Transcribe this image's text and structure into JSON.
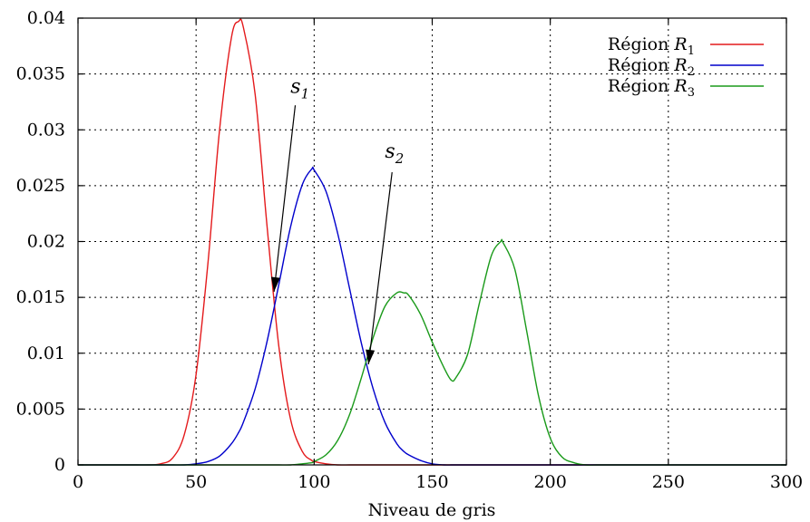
{
  "chart_data": {
    "type": "line",
    "title": "",
    "xlabel": "Niveau de gris",
    "ylabel": "",
    "xlim": [
      0,
      300
    ],
    "ylim": [
      0,
      0.04
    ],
    "grid": true,
    "legend_position": "top-right",
    "x_ticks": [
      0,
      50,
      100,
      150,
      200,
      250,
      300
    ],
    "x_tick_labels": [
      "0",
      "50",
      "100",
      "150",
      "200",
      "250",
      "300"
    ],
    "y_ticks": [
      0,
      0.005,
      0.01,
      0.015,
      0.02,
      0.025,
      0.03,
      0.035,
      0.04
    ],
    "y_tick_labels": [
      "0",
      "0.005",
      "0.01",
      "0.015",
      "0.02",
      "0.025",
      "0.03",
      "0.035",
      "0.04"
    ],
    "x": [
      0,
      5,
      10,
      15,
      20,
      25,
      30,
      35,
      40,
      45,
      50,
      55,
      60,
      65,
      68,
      70,
      75,
      80,
      85,
      90,
      95,
      99,
      100,
      105,
      110,
      115,
      120,
      125,
      130,
      135,
      138,
      140,
      145,
      150,
      155,
      158,
      160,
      165,
      170,
      175,
      179,
      180,
      185,
      190,
      195,
      200,
      205,
      210,
      215,
      220,
      225,
      230,
      235,
      240,
      245,
      250,
      255,
      260,
      265,
      270,
      275,
      280,
      285,
      290,
      295,
      300
    ],
    "series": [
      {
        "name": "Région R1",
        "name_base": "Région ",
        "name_var": "R",
        "name_sub": "1",
        "color": "#e41a1c",
        "values": [
          0,
          0,
          0,
          0,
          0,
          0,
          0,
          0.0001,
          0.0006,
          0.0027,
          0.0081,
          0.018,
          0.0301,
          0.0383,
          0.0397,
          0.0392,
          0.0332,
          0.0215,
          0.0107,
          0.0041,
          0.0012,
          0.0004,
          0.0003,
          0.0001,
          0,
          0,
          0,
          0,
          0,
          0,
          0,
          0,
          0,
          0,
          0,
          0,
          0,
          0,
          0,
          0,
          0,
          0,
          0,
          0,
          0,
          0,
          0,
          0,
          0,
          0,
          0,
          0,
          0,
          0,
          0,
          0,
          0,
          0,
          0,
          0,
          0,
          0,
          0,
          0,
          0,
          0
        ]
      },
      {
        "name": "Région R2",
        "name_base": "Région ",
        "name_var": "R",
        "name_sub": "2",
        "color": "#0000cc",
        "values": [
          0,
          0,
          0,
          0,
          0,
          0,
          0,
          0,
          0,
          0,
          0.0001,
          0.0003,
          0.0008,
          0.0019,
          0.0029,
          0.0038,
          0.0068,
          0.011,
          0.0161,
          0.0213,
          0.0251,
          0.0265,
          0.0264,
          0.0245,
          0.0207,
          0.0158,
          0.0109,
          0.0068,
          0.0038,
          0.0019,
          0.0012,
          0.0009,
          0.0004,
          0.0001,
          0,
          0,
          0,
          0,
          0,
          0,
          0,
          0,
          0,
          0,
          0,
          0,
          0,
          0,
          0,
          0,
          0,
          0,
          0,
          0,
          0,
          0,
          0,
          0,
          0,
          0,
          0,
          0,
          0,
          0,
          0,
          0
        ]
      },
      {
        "name": "Région R3",
        "name_base": "Région ",
        "name_var": "R",
        "name_sub": "3",
        "color": "#1a9a1a",
        "values": [
          0,
          0,
          0,
          0,
          0,
          0,
          0,
          0,
          0,
          0,
          0,
          0,
          0,
          0,
          0,
          0,
          0,
          0,
          0,
          0,
          0.0001,
          0.0002,
          0.0003,
          0.0009,
          0.0022,
          0.0045,
          0.0078,
          0.0114,
          0.0142,
          0.0154,
          0.0154,
          0.0152,
          0.0135,
          0.011,
          0.0087,
          0.0076,
          0.0078,
          0.0099,
          0.0145,
          0.0187,
          0.02,
          0.0199,
          0.0175,
          0.012,
          0.0062,
          0.0024,
          0.0007,
          0.0002,
          0,
          0,
          0,
          0,
          0,
          0,
          0,
          0,
          0,
          0,
          0,
          0,
          0,
          0,
          0,
          0,
          0,
          0
        ]
      }
    ],
    "annotations": [
      {
        "label_var": "s",
        "label_sub": "1",
        "text_at": [
          90,
          0.0333
        ],
        "arrow_from": [
          92,
          0.0322
        ],
        "arrow_to": [
          83,
          0.0155
        ]
      },
      {
        "label_var": "s",
        "label_sub": "2",
        "text_at": [
          130,
          0.0275
        ],
        "arrow_from": [
          133,
          0.0262
        ],
        "arrow_to": [
          123,
          0.009
        ]
      }
    ]
  }
}
